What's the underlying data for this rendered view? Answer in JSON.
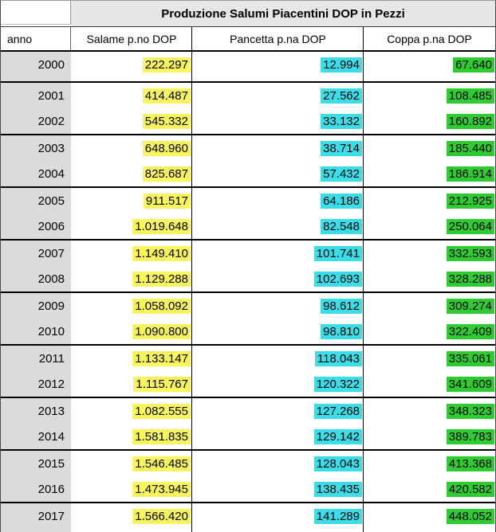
{
  "title": "Produzione Salumi Piacentini DOP in Pezzi",
  "header": {
    "anno": "anno",
    "salame": "Salame p.no DOP",
    "pancetta": "Pancetta p.na DOP",
    "coppa": "Coppa p.na DOP"
  },
  "colors": {
    "title_bg": "#e7e7e7",
    "anno_column_bg": "#dbdbdb",
    "salame_highlight": "#f8f55f",
    "pancetta_highlight": "#3bdde8",
    "coppa_highlight": "#2ecb31",
    "border": "#000000"
  },
  "groups": [
    [
      0
    ],
    [
      1,
      2
    ],
    [
      3,
      4
    ],
    [
      5,
      6
    ],
    [
      7,
      8
    ],
    [
      9,
      10
    ],
    [
      11,
      12
    ],
    [
      13,
      14
    ],
    [
      15,
      16
    ],
    [
      17
    ]
  ],
  "rows": [
    {
      "anno": "2000",
      "salame": "222.297",
      "pancetta": "12.994",
      "coppa": "67.640"
    },
    {
      "anno": "2001",
      "salame": "414.487",
      "pancetta": "27.562",
      "coppa": "108.485"
    },
    {
      "anno": "2002",
      "salame": "545.332",
      "pancetta": "33.132",
      "coppa": "160.892"
    },
    {
      "anno": "2003",
      "salame": "648.960",
      "pancetta": "38.714",
      "coppa": "185.440"
    },
    {
      "anno": "2004",
      "salame": "825.687",
      "pancetta": "57.432",
      "coppa": "186.914"
    },
    {
      "anno": "2005",
      "salame": "911.517",
      "pancetta": "64.186",
      "coppa": "212.925"
    },
    {
      "anno": "2006",
      "salame": "1.019.648",
      "pancetta": "82.548",
      "coppa": "250.064"
    },
    {
      "anno": "2007",
      "salame": "1.149.410",
      "pancetta": "101.741",
      "coppa": "332.593"
    },
    {
      "anno": "2008",
      "salame": "1.129.288",
      "pancetta": "102.693",
      "coppa": "328.288"
    },
    {
      "anno": "2009",
      "salame": "1.058.092",
      "pancetta": "98.612",
      "coppa": "309.274"
    },
    {
      "anno": "2010",
      "salame": "1.090.800",
      "pancetta": "98.810",
      "coppa": "322.409"
    },
    {
      "anno": "2011",
      "salame": "1.133.147",
      "pancetta": "118.043",
      "coppa": "335.061"
    },
    {
      "anno": "2012",
      "salame": "1.115.767",
      "pancetta": "120.322",
      "coppa": "341.609"
    },
    {
      "anno": "2013",
      "salame": "1.082.555",
      "pancetta": "127.268",
      "coppa": "348.323"
    },
    {
      "anno": "2014",
      "salame": "1.581.835",
      "pancetta": "129.142",
      "coppa": "389.783"
    },
    {
      "anno": "2015",
      "salame": "1.546.485",
      "pancetta": "128.043",
      "coppa": "413.368"
    },
    {
      "anno": "2016",
      "salame": "1.473.945",
      "pancetta": "138.435",
      "coppa": "420.582"
    },
    {
      "anno": "2017",
      "salame": "1.566.420",
      "pancetta": "141.289",
      "coppa": "448.052"
    }
  ],
  "chart_data": {
    "type": "table",
    "title": "Produzione Salumi Piacentini DOP in Pezzi",
    "columns": [
      "anno",
      "Salame p.no DOP",
      "Pancetta p.na DOP",
      "Coppa p.na DOP"
    ],
    "rows": [
      [
        2000,
        222297,
        12994,
        67640
      ],
      [
        2001,
        414487,
        27562,
        108485
      ],
      [
        2002,
        545332,
        33132,
        160892
      ],
      [
        2003,
        648960,
        38714,
        185440
      ],
      [
        2004,
        825687,
        57432,
        186914
      ],
      [
        2005,
        911517,
        64186,
        212925
      ],
      [
        2006,
        1019648,
        82548,
        250064
      ],
      [
        2007,
        1149410,
        101741,
        332593
      ],
      [
        2008,
        1129288,
        102693,
        328288
      ],
      [
        2009,
        1058092,
        98612,
        309274
      ],
      [
        2010,
        1090800,
        98810,
        322409
      ],
      [
        2011,
        1133147,
        118043,
        335061
      ],
      [
        2012,
        1115767,
        120322,
        341609
      ],
      [
        2013,
        1082555,
        127268,
        348323
      ],
      [
        2014,
        1581835,
        129142,
        389783
      ],
      [
        2015,
        1546485,
        128043,
        413368
      ],
      [
        2016,
        1473945,
        138435,
        420582
      ],
      [
        2017,
        1566420,
        141289,
        448052
      ]
    ],
    "notes": "Values use Italian thousands separator (.). Column highlights: Salame=yellow, Pancetta=cyan, Coppa=green. Rows grouped in pairs by thick borders."
  }
}
